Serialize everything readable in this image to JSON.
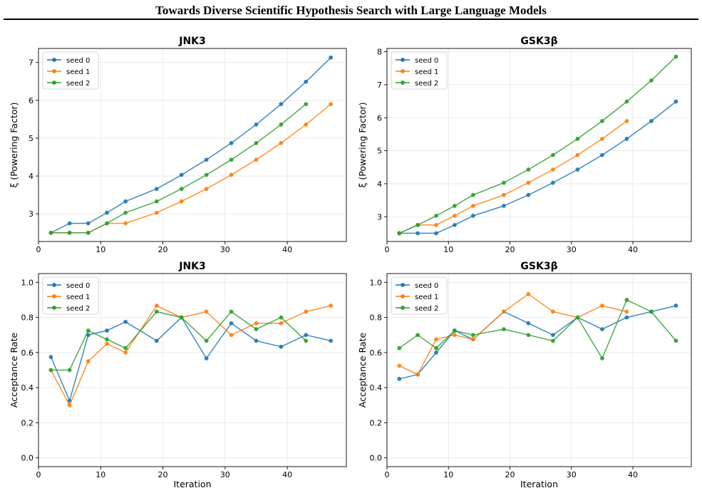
{
  "header": {
    "title": "Towards Diverse Scientific Hypothesis Search with Large Language Models"
  },
  "colors": {
    "seed0": "#1f77b4",
    "seed1": "#ff7f0e",
    "seed2": "#2ca02c",
    "grid": "#e6e6e6"
  },
  "chart_data": [
    {
      "type": "line",
      "title": "JNK3",
      "xlabel": "",
      "ylabel": "ξ (Powering Factor)",
      "xlim": [
        0,
        49.5
      ],
      "ylim": [
        2.27,
        7.37
      ],
      "xticks": [
        0,
        10,
        20,
        30,
        40
      ],
      "yticks": [
        3,
        4,
        5,
        6,
        7
      ],
      "grid": true,
      "legend": "top-left",
      "series": [
        {
          "name": "seed 0",
          "x": [
            2,
            5,
            8,
            11,
            14,
            19,
            23,
            27,
            31,
            35,
            39,
            43,
            47
          ],
          "y": [
            2.5,
            2.75,
            2.75,
            3.03,
            3.33,
            3.66,
            4.03,
            4.43,
            4.87,
            5.36,
            5.9,
            6.49,
            7.13
          ]
        },
        {
          "name": "seed 1",
          "x": [
            2,
            5,
            8,
            11,
            14,
            19,
            23,
            27,
            31,
            35,
            39,
            43,
            47
          ],
          "y": [
            2.5,
            2.5,
            2.5,
            2.75,
            2.75,
            3.03,
            3.33,
            3.66,
            4.03,
            4.43,
            4.87,
            5.36,
            5.9
          ]
        },
        {
          "name": "seed 2",
          "x": [
            2,
            5,
            8,
            11,
            14,
            19,
            23,
            27,
            31,
            35,
            39,
            43
          ],
          "y": [
            2.5,
            2.5,
            2.5,
            2.75,
            3.03,
            3.33,
            3.66,
            4.03,
            4.43,
            4.87,
            5.36,
            5.9
          ]
        }
      ]
    },
    {
      "type": "line",
      "title": "GSK3β",
      "xlabel": "",
      "ylabel": "ξ (Powering Factor)",
      "xlim": [
        0,
        49.5
      ],
      "ylim": [
        2.25,
        8.1
      ],
      "xticks": [
        0,
        10,
        20,
        30,
        40
      ],
      "yticks": [
        3,
        4,
        5,
        6,
        7,
        8
      ],
      "grid": true,
      "legend": "top-left",
      "series": [
        {
          "name": "seed 0",
          "x": [
            2,
            5,
            8,
            11,
            14,
            19,
            23,
            27,
            31,
            35,
            39,
            43,
            47
          ],
          "y": [
            2.5,
            2.5,
            2.5,
            2.75,
            3.03,
            3.33,
            3.66,
            4.03,
            4.43,
            4.87,
            5.36,
            5.9,
            6.49
          ]
        },
        {
          "name": "seed 1",
          "x": [
            2,
            5,
            8,
            11,
            14,
            19,
            23,
            27,
            31,
            35,
            39
          ],
          "y": [
            2.5,
            2.75,
            2.75,
            3.03,
            3.33,
            3.66,
            4.03,
            4.43,
            4.87,
            5.36,
            5.9
          ]
        },
        {
          "name": "seed 2",
          "x": [
            2,
            5,
            8,
            11,
            14,
            19,
            23,
            27,
            31,
            35,
            39,
            43,
            47
          ],
          "y": [
            2.5,
            2.75,
            3.03,
            3.33,
            3.66,
            4.03,
            4.43,
            4.87,
            5.36,
            5.9,
            6.49,
            7.13,
            7.85
          ]
        }
      ]
    },
    {
      "type": "line",
      "title": "JNK3",
      "xlabel": "Iteration",
      "ylabel": "Acceptance Rate",
      "xlim": [
        0,
        49.5
      ],
      "ylim": [
        -0.05,
        1.05
      ],
      "xticks": [
        0,
        10,
        20,
        30,
        40
      ],
      "yticks": [
        0.0,
        0.2,
        0.4,
        0.6,
        0.8,
        1.0
      ],
      "grid": true,
      "legend": "top-left",
      "series": [
        {
          "name": "seed 0",
          "x": [
            2,
            5,
            8,
            11,
            14,
            19,
            23,
            27,
            31,
            35,
            39,
            43,
            47
          ],
          "y": [
            0.575,
            0.325,
            0.7,
            0.725,
            0.775,
            0.667,
            0.8,
            0.567,
            0.767,
            0.667,
            0.633,
            0.7,
            0.667
          ]
        },
        {
          "name": "seed 1",
          "x": [
            2,
            5,
            8,
            11,
            14,
            19,
            23,
            27,
            31,
            35,
            39,
            43,
            47
          ],
          "y": [
            0.5,
            0.3,
            0.55,
            0.65,
            0.6,
            0.867,
            0.8,
            0.833,
            0.7,
            0.767,
            0.767,
            0.833,
            0.867
          ]
        },
        {
          "name": "seed 2",
          "x": [
            2,
            5,
            8,
            11,
            14,
            19,
            23,
            27,
            31,
            35,
            39,
            43
          ],
          "y": [
            0.5,
            0.5,
            0.725,
            0.675,
            0.625,
            0.833,
            0.8,
            0.667,
            0.833,
            0.733,
            0.8,
            0.667
          ]
        }
      ]
    },
    {
      "type": "line",
      "title": "GSK3β",
      "xlabel": "Iteration",
      "ylabel": "Acceptance Rate",
      "xlim": [
        0,
        49.5
      ],
      "ylim": [
        -0.05,
        1.05
      ],
      "xticks": [
        0,
        10,
        20,
        30,
        40
      ],
      "yticks": [
        0.0,
        0.2,
        0.4,
        0.6,
        0.8,
        1.0
      ],
      "grid": true,
      "legend": "top-left",
      "series": [
        {
          "name": "seed 0",
          "x": [
            2,
            5,
            8,
            11,
            14,
            19,
            23,
            27,
            31,
            35,
            39,
            43,
            47
          ],
          "y": [
            0.45,
            0.475,
            0.6,
            0.725,
            0.675,
            0.833,
            0.767,
            0.7,
            0.8,
            0.733,
            0.8,
            0.833,
            0.867
          ]
        },
        {
          "name": "seed 1",
          "x": [
            2,
            5,
            8,
            11,
            14,
            19,
            23,
            27,
            31,
            35,
            39
          ],
          "y": [
            0.525,
            0.475,
            0.675,
            0.7,
            0.675,
            0.833,
            0.933,
            0.833,
            0.8,
            0.867,
            0.833
          ]
        },
        {
          "name": "seed 2",
          "x": [
            2,
            5,
            8,
            11,
            14,
            19,
            23,
            27,
            31,
            35,
            39,
            43,
            47
          ],
          "y": [
            0.625,
            0.7,
            0.625,
            0.725,
            0.7,
            0.733,
            0.7,
            0.667,
            0.8,
            0.567,
            0.9,
            0.833,
            0.667
          ]
        }
      ]
    }
  ]
}
